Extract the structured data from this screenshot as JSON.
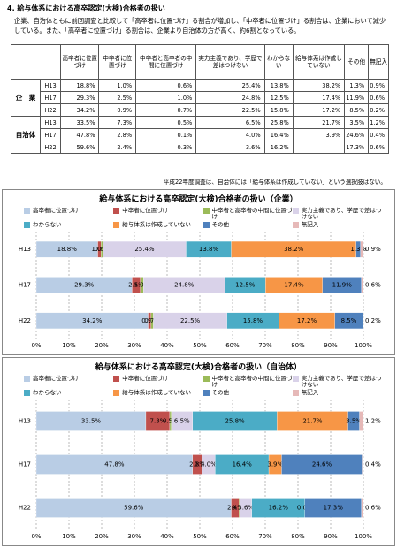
{
  "title": "4. 給与体系における高卒認定(大検)合格者の扱い",
  "paragraph": "企業、自治体ともに前回調査と比較して「高卒者に位置づけ」る割合が増加し、「中卒者に位置づけ」る割合は、企業において減少している。また、「高卒者に位置づけ」る割合は、企業より自治体の方が高く、約6割となっている。",
  "table": {
    "header": [
      "高卒者に位置づけ",
      "中卒者に位置づけ",
      "中卒者と高卒者の中間に位置づけ",
      "実力主義であり、学歴で差はつけない",
      "わからない",
      "給与体系は作成していない",
      "その他",
      "無記入"
    ],
    "groups": [
      {
        "label": "企　業",
        "rows": [
          {
            "year": "H13",
            "cells": [
              "18.8%",
              "1.0%",
              "0.6%",
              "25.4%",
              "13.8%",
              "38.2%",
              "1.3%",
              "0.9%"
            ]
          },
          {
            "year": "H17",
            "cells": [
              "29.3%",
              "2.5%",
              "1.0%",
              "24.8%",
              "12.5%",
              "17.4%",
              "11.9%",
              "0.6%"
            ]
          },
          {
            "year": "H22",
            "cells": [
              "34.2%",
              "0.9%",
              "0.7%",
              "22.5%",
              "15.8%",
              "17.2%",
              "8.5%",
              "0.2%"
            ]
          }
        ]
      },
      {
        "label": "自治体",
        "rows": [
          {
            "year": "H13",
            "cells": [
              "33.5%",
              "7.3%",
              "0.5%",
              "6.5%",
              "25.8%",
              "21.7%",
              "3.5%",
              "1.2%"
            ]
          },
          {
            "year": "H17",
            "cells": [
              "47.8%",
              "2.8%",
              "0.1%",
              "4.0%",
              "16.4%",
              "3.9%",
              "24.6%",
              "0.4%"
            ]
          },
          {
            "year": "H22",
            "cells": [
              "59.6%",
              "2.4%",
              "0.3%",
              "3.6%",
              "16.2%",
              "－",
              "17.3%",
              "0.6%"
            ]
          }
        ]
      }
    ]
  },
  "note": "平成22年度調査は、自治体には「給与体系は作成していない」という選択肢はない。",
  "charts": [
    {
      "type": "bar",
      "orientation": "horizontal",
      "stacked": true,
      "title": "給与体系における高卒認定(大検)合格者の扱い（企業）",
      "categories": [
        "H13",
        "H17",
        "H22"
      ],
      "xlim": [
        0,
        100
      ],
      "xticks": [
        {
          "value": 0,
          "label": "0%"
        },
        {
          "value": 10,
          "label": "10%"
        },
        {
          "value": 20,
          "label": "20%"
        },
        {
          "value": 30,
          "label": "30%"
        },
        {
          "value": 40,
          "label": "40%"
        },
        {
          "value": 50,
          "label": "50%"
        },
        {
          "value": 60,
          "label": "60%"
        },
        {
          "value": 70,
          "label": "70%"
        },
        {
          "value": 80,
          "label": "80%"
        },
        {
          "value": 90,
          "label": "90%"
        },
        {
          "value": 100,
          "label": "100%"
        }
      ],
      "series": [
        {
          "name": "高卒者に位置づけ",
          "color": "#b9cde5",
          "values": [
            18.8,
            29.3,
            34.2
          ],
          "value_labels": [
            "18.8%",
            "29.3%",
            "34.2%"
          ]
        },
        {
          "name": "中卒者に位置づけ",
          "color": "#c0504d",
          "values": [
            1.0,
            2.5,
            0.9
          ],
          "value_labels": [
            "1.0%",
            "2.5%",
            "0.9%"
          ]
        },
        {
          "name": "中卒者と高卒者の中間に位置づけ",
          "color": "#9bbb59",
          "values": [
            0.6,
            1.0,
            0.7
          ],
          "value_labels": [
            "0.6%",
            "1.0%",
            "0.7%"
          ]
        },
        {
          "name": "実力主義であり、学歴で差はつけない",
          "color": "#d9d2e9",
          "values": [
            25.4,
            24.8,
            22.5
          ],
          "value_labels": [
            "25.4%",
            "24.8%",
            "22.5%"
          ]
        },
        {
          "name": "わからない",
          "color": "#4bacc6",
          "values": [
            13.8,
            12.5,
            15.8
          ],
          "value_labels": [
            "13.8%",
            "12.5%",
            "15.8%"
          ]
        },
        {
          "name": "給与体系は作成していない",
          "color": "#f79646",
          "values": [
            38.2,
            17.4,
            17.2
          ],
          "value_labels": [
            "38.2%",
            "17.4%",
            "17.2%"
          ]
        },
        {
          "name": "その他",
          "color": "#4f81bd",
          "values": [
            1.3,
            11.9,
            8.5
          ],
          "value_labels": [
            "1.3%",
            "11.9%",
            "8.5%"
          ]
        },
        {
          "name": "無記入",
          "color": "#e6b9b8",
          "values": [
            0.9,
            0.6,
            0.2
          ],
          "value_labels": [
            "0.9%",
            "0.6%",
            "0.2%"
          ]
        }
      ]
    },
    {
      "type": "bar",
      "orientation": "horizontal",
      "stacked": true,
      "title": "給与体系における高卒認定(大検)合格者の扱い（自治体）",
      "categories": [
        "H13",
        "H17",
        "H22"
      ],
      "xlim": [
        0,
        100
      ],
      "xticks": [
        {
          "value": 0,
          "label": "0%"
        },
        {
          "value": 10,
          "label": "10%"
        },
        {
          "value": 20,
          "label": "20%"
        },
        {
          "value": 30,
          "label": "30%"
        },
        {
          "value": 40,
          "label": "40%"
        },
        {
          "value": 50,
          "label": "50%"
        },
        {
          "value": 60,
          "label": "60%"
        },
        {
          "value": 70,
          "label": "70%"
        },
        {
          "value": 80,
          "label": "80%"
        },
        {
          "value": 90,
          "label": "90%"
        },
        {
          "value": 100,
          "label": "100%"
        }
      ],
      "series": [
        {
          "name": "高卒者に位置づけ",
          "color": "#b9cde5",
          "values": [
            33.5,
            47.8,
            59.6
          ],
          "value_labels": [
            "33.5%",
            "47.8%",
            "59.6%"
          ]
        },
        {
          "name": "中卒者に位置づけ",
          "color": "#c0504d",
          "values": [
            7.3,
            2.8,
            2.4
          ],
          "value_labels": [
            "7.3%",
            "2.8%",
            "2.4%"
          ]
        },
        {
          "name": "中卒者と高卒者の中間に位置づけ",
          "color": "#9bbb59",
          "values": [
            0.5,
            0.1,
            0.3
          ],
          "value_labels": [
            "0.5%",
            "0.1%",
            "0.3%"
          ]
        },
        {
          "name": "実力主義であり、学歴で差はつけない",
          "color": "#d9d2e9",
          "values": [
            6.5,
            4.0,
            3.6
          ],
          "value_labels": [
            "6.5%",
            "4.0%",
            "3.6%"
          ]
        },
        {
          "name": "わからない",
          "color": "#4bacc6",
          "values": [
            25.8,
            16.4,
            16.2
          ],
          "value_labels": [
            "25.8%",
            "16.4%",
            "16.2%"
          ]
        },
        {
          "name": "給与体系は作成していない",
          "color": "#f79646",
          "values": [
            21.7,
            3.9,
            0.0
          ],
          "value_labels": [
            "21.7%",
            "3.9%",
            "0.0%"
          ]
        },
        {
          "name": "その他",
          "color": "#4f81bd",
          "values": [
            3.5,
            24.6,
            17.3
          ],
          "value_labels": [
            "3.5%",
            "24.6%",
            "17.3%"
          ]
        },
        {
          "name": "無記入",
          "color": "#e6b9b8",
          "values": [
            1.2,
            0.4,
            0.6
          ],
          "value_labels": [
            "1.2%",
            "0.4%",
            "0.6%"
          ]
        }
      ]
    }
  ]
}
